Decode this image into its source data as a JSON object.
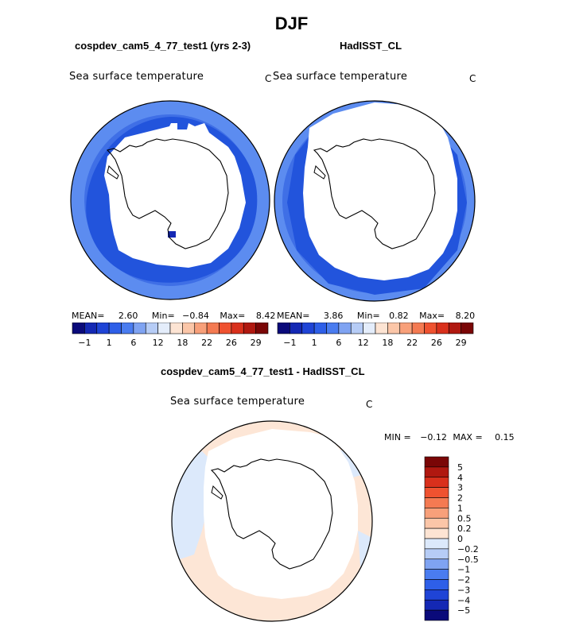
{
  "title": "DJF",
  "panels": {
    "left": {
      "subtitle": "cospdev_cam5_4_77_test1 (yrs 2-3)",
      "variable": "Sea surface temperature",
      "unit": "C",
      "mean_label": "MEAN=",
      "mean": "2.60",
      "min_label": "Min=",
      "min": "−0.84",
      "max_label": "Max=",
      "max": "8.42"
    },
    "right": {
      "subtitle": "HadISST_CL",
      "variable": "Sea surface temperature",
      "unit": "C",
      "mean_label": "MEAN=",
      "mean": "3.86",
      "min_label": "Min=",
      "min": "0.82",
      "max_label": "Max=",
      "max": "8.20"
    },
    "diff": {
      "subtitle": "cospdev_cam5_4_77_test1 - HadISST_CL",
      "variable": "Sea surface temperature",
      "unit": "C",
      "min_label": "MIN =",
      "min": "−0.12",
      "max_label": "MAX =",
      "max": "0.15"
    }
  },
  "colors": {
    "abs_scale": [
      "#0a0a7a",
      "#1428b4",
      "#1f44d6",
      "#2e5fe8",
      "#4a7cf0",
      "#7fa3f2",
      "#b6ccf6",
      "#e4edfb",
      "#fde4d3",
      "#fbc6a8",
      "#f8a07a",
      "#f47a52",
      "#ef5230",
      "#d9301c",
      "#b01810",
      "#7a0606"
    ],
    "diff_scale": [
      "#0a0a7a",
      "#1428b4",
      "#1f44d6",
      "#2e5fe8",
      "#4a7cf0",
      "#7fa3f2",
      "#b6ccf6",
      "#dce9fb",
      "#fde4d3",
      "#fbc6a8",
      "#f8a07a",
      "#f47a52",
      "#ef5230",
      "#d9301c",
      "#b01810",
      "#7a0606"
    ]
  },
  "chart_data": [
    {
      "type": "heatmap",
      "title": "cospdev_cam5_4_77_test1 (yrs 2-3)",
      "subtitle": "Sea surface temperature",
      "unit": "C",
      "season": "DJF",
      "projection": "south polar stereographic",
      "mean": 2.6,
      "min": -0.84,
      "max": 8.42,
      "colorbar_ticks": [
        "−1",
        "1",
        "6",
        "12",
        "18",
        "22",
        "26",
        "29"
      ],
      "colorbar_levels": 16
    },
    {
      "type": "heatmap",
      "title": "HadISST_CL",
      "subtitle": "Sea surface temperature",
      "unit": "C",
      "season": "DJF",
      "projection": "south polar stereographic",
      "mean": 3.86,
      "min": 0.82,
      "max": 8.2,
      "colorbar_ticks": [
        "−1",
        "1",
        "6",
        "12",
        "18",
        "22",
        "26",
        "29"
      ],
      "colorbar_levels": 16
    },
    {
      "type": "heatmap",
      "title": "cospdev_cam5_4_77_test1 - HadISST_CL",
      "subtitle": "Sea surface temperature",
      "unit": "C",
      "season": "DJF",
      "projection": "south polar stereographic",
      "min": -0.12,
      "max": 0.15,
      "colorbar_ticks": [
        "5",
        "4",
        "3",
        "2",
        "1",
        "0.5",
        "0.2",
        "0",
        "−0.2",
        "−0.5",
        "−1",
        "−2",
        "−3",
        "−4",
        "−5"
      ],
      "colorbar_levels": 16
    }
  ]
}
